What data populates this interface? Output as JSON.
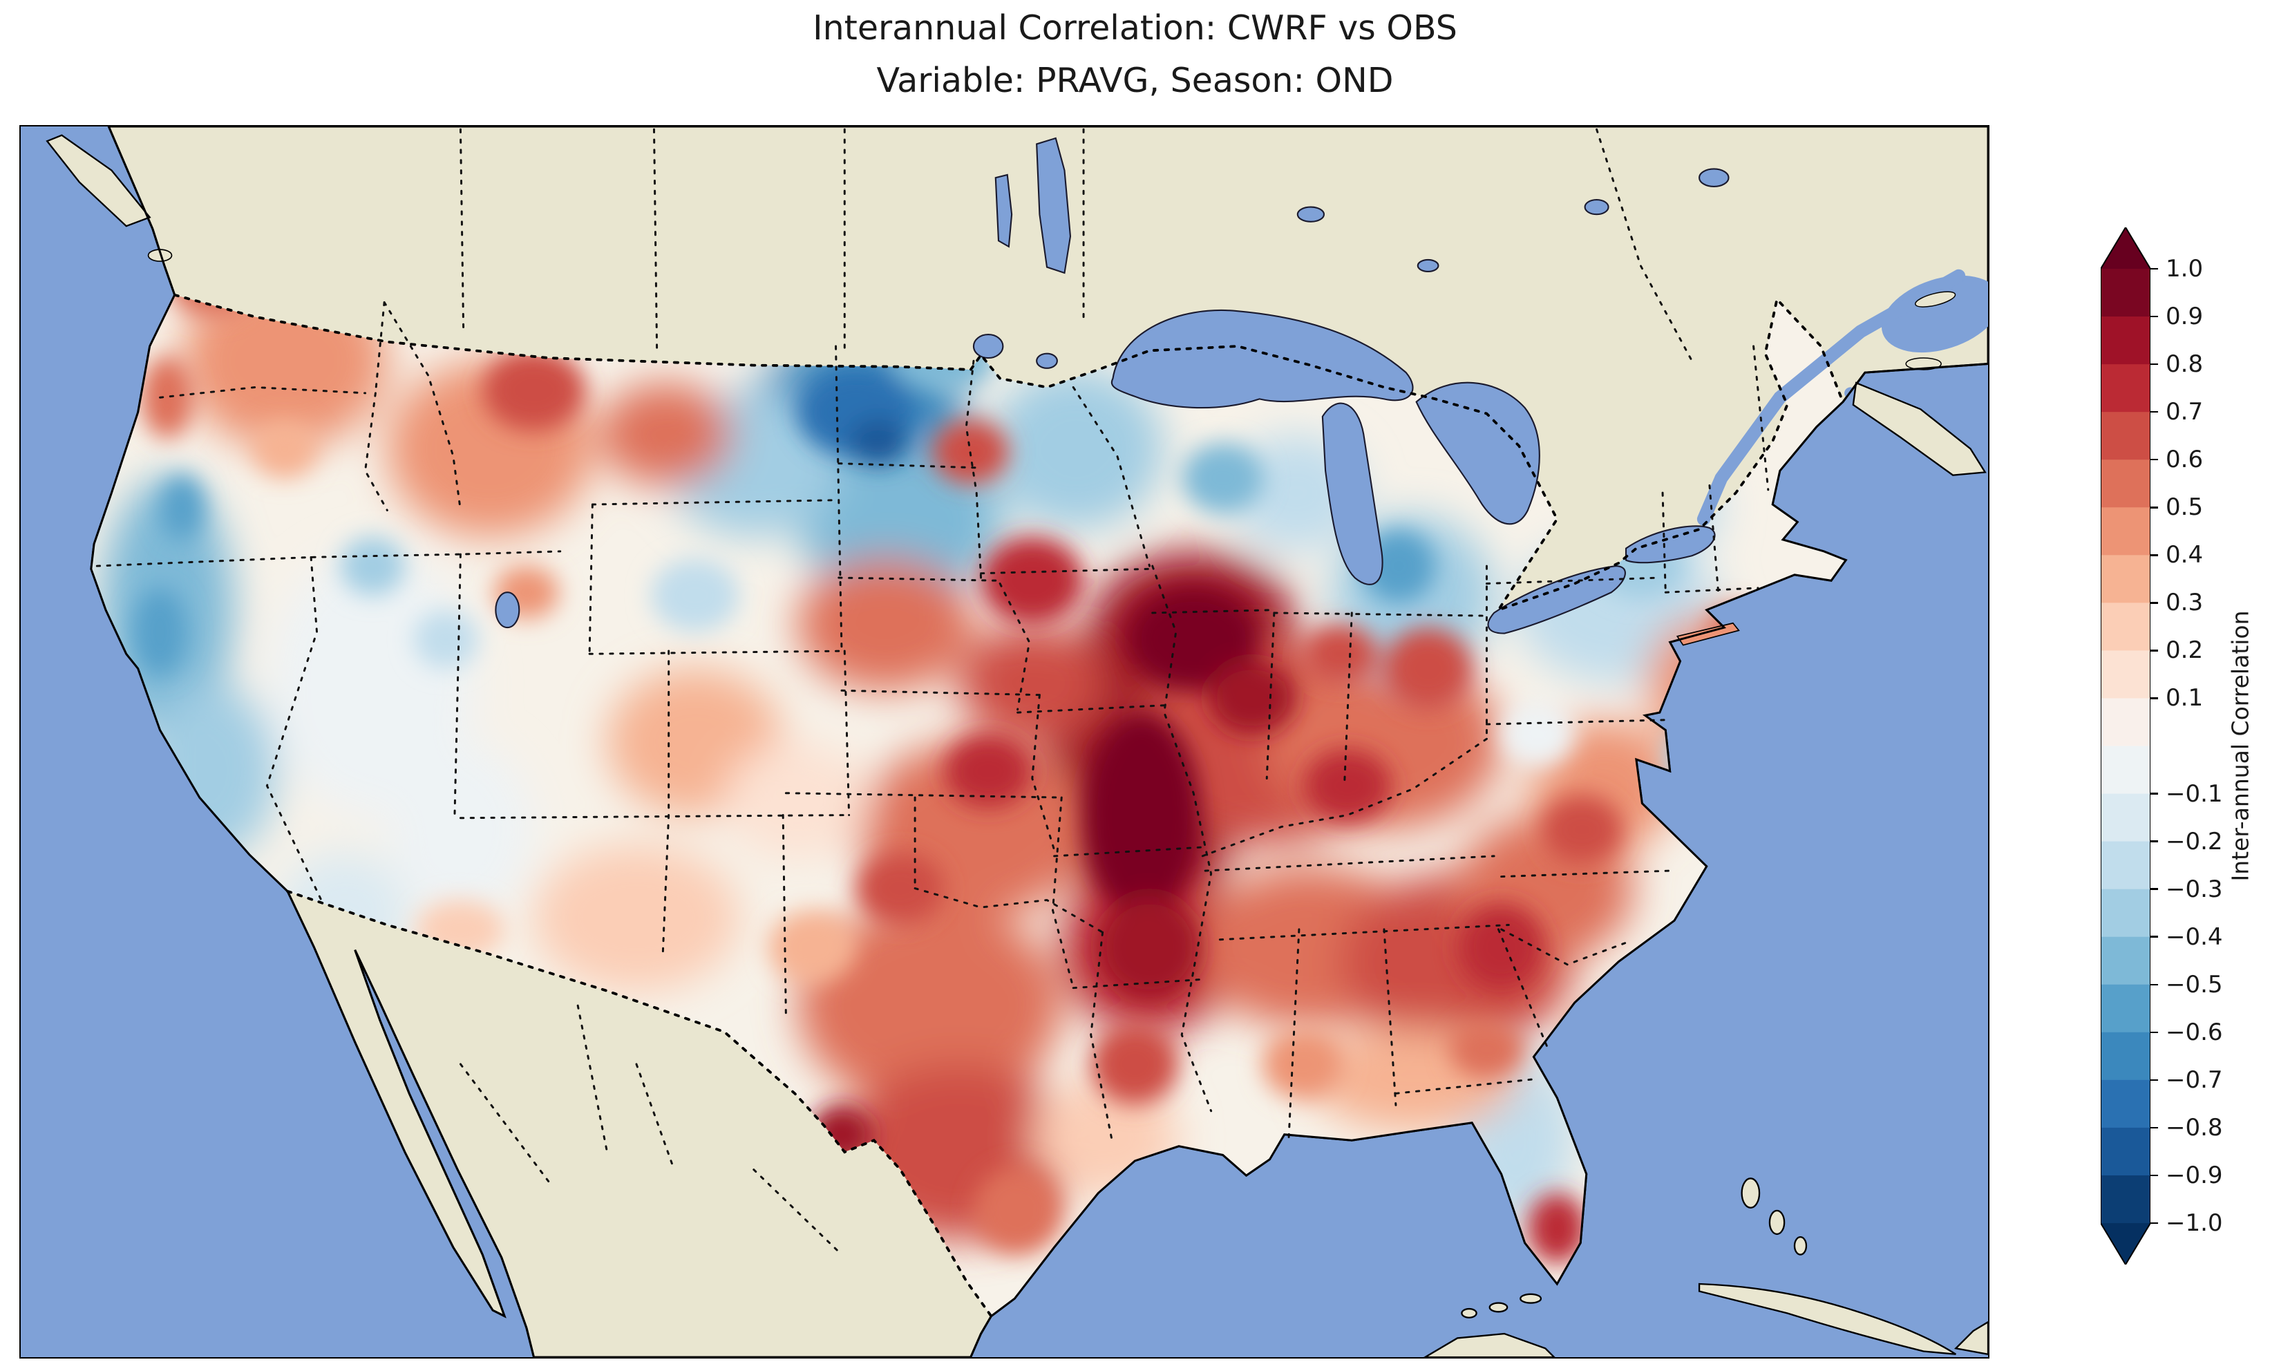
{
  "figure": {
    "title_line1": "Interannual Correlation: CWRF vs OBS",
    "title_line2": "Variable: PRAVG, Season: OND"
  },
  "colorbar": {
    "label": "Inter-annual Correlation",
    "orientation": "vertical",
    "extend": "both",
    "arrow_top_color": "#67001f",
    "arrow_bottom_color": "#053061",
    "band_colors": [
      "#7a0622",
      "#9f1228",
      "#bb2a34",
      "#cd4e45",
      "#de715a",
      "#ed9475",
      "#f6b393",
      "#fbceb6",
      "#fce2d3",
      "#f9f0eb",
      "#eef3f5",
      "#dbeaf2",
      "#c1ddec",
      "#a2cde3",
      "#7eb9d7",
      "#57a0ca",
      "#3b88bd",
      "#2a71b2",
      "#1a5999",
      "#0c3e74"
    ],
    "ticks": [
      {
        "label": "1.0",
        "value": 1.0
      },
      {
        "label": "0.9",
        "value": 0.9
      },
      {
        "label": "0.8",
        "value": 0.8
      },
      {
        "label": "0.7",
        "value": 0.7
      },
      {
        "label": "0.6",
        "value": 0.6
      },
      {
        "label": "0.5",
        "value": 0.5
      },
      {
        "label": "0.4",
        "value": 0.4
      },
      {
        "label": "0.3",
        "value": 0.3
      },
      {
        "label": "0.2",
        "value": 0.2
      },
      {
        "label": "0.1",
        "value": 0.1
      },
      {
        "label": "−0.1",
        "value": -0.1
      },
      {
        "label": "−0.2",
        "value": -0.2
      },
      {
        "label": "−0.3",
        "value": -0.3
      },
      {
        "label": "−0.4",
        "value": -0.4
      },
      {
        "label": "−0.5",
        "value": -0.5
      },
      {
        "label": "−0.6",
        "value": -0.6
      },
      {
        "label": "−0.7",
        "value": -0.7
      },
      {
        "label": "−0.8",
        "value": -0.8
      },
      {
        "label": "−0.9",
        "value": -0.9
      },
      {
        "label": "−1.0",
        "value": -1.0
      }
    ]
  },
  "map": {
    "ocean_color": "#7fa1d7",
    "land_color": "#e9e6d0",
    "us_base_color": "#f7f2e9",
    "border_style": "dotted",
    "frame_color": "#000000"
  },
  "chart_data": {
    "type": "heatmap",
    "title": "Interannual Correlation: CWRF vs OBS",
    "subtitle": "Variable: PRAVG, Season: OND",
    "model": "CWRF",
    "reference": "OBS",
    "variable": "PRAVG",
    "season": "OND",
    "region": "Contiguous United States with surrounding Canada, Mexico, Atlantic and Pacific",
    "colorbar_label": "Inter-annual Correlation",
    "colormap": "RdBu_r (blue = negative correlation, red = positive correlation)",
    "value_range": [
      -1.0,
      1.0
    ],
    "contour_interval": 0.1,
    "legend_position": "right",
    "grid": false,
    "regional_correlations": [
      {
        "region": "Central Midwest (Iowa-Missouri-Illinois corridor)",
        "correlation": 0.85
      },
      {
        "region": "Ozarks / Arkansas",
        "correlation": 0.75
      },
      {
        "region": "Ohio Valley (Indiana-Ohio-Kentucky)",
        "correlation": 0.6
      },
      {
        "region": "Kansas / Oklahoma / northern Texas",
        "correlation": 0.55
      },
      {
        "region": "Central and southern Texas",
        "correlation": 0.5
      },
      {
        "region": "Big Bend, Texas",
        "correlation": 0.7
      },
      {
        "region": "Tennessee / Mississippi / Alabama",
        "correlation": 0.5
      },
      {
        "region": "Georgia / South Carolina",
        "correlation": 0.6
      },
      {
        "region": "Coastal Carolinas / Virginia",
        "correlation": 0.4
      },
      {
        "region": "South Florida tip",
        "correlation": 0.7
      },
      {
        "region": "Florida peninsula",
        "correlation": -0.3
      },
      {
        "region": "Montana-Wyoming-Dakotas junction (dark blue patch)",
        "correlation": -0.7
      },
      {
        "region": "Minnesota / western Great Lakes",
        "correlation": -0.3
      },
      {
        "region": "Michigan / Lake Michigan shore",
        "correlation": -0.5
      },
      {
        "region": "New York / Pennsylvania / New England",
        "correlation": -0.25
      },
      {
        "region": "Mid-Atlantic coast (New Jersey)",
        "correlation": 0.4
      },
      {
        "region": "California coast",
        "correlation": -0.55
      },
      {
        "region": "Great Basin (Nevada / Utah)",
        "correlation": -0.1
      },
      {
        "region": "Pacific Northwest coast (Washington / Oregon)",
        "correlation": 0.45
      },
      {
        "region": "Idaho / western Montana",
        "correlation": 0.5
      },
      {
        "region": "Colorado / New Mexico",
        "correlation": 0.2
      },
      {
        "region": "Gulf Coast (Louisiana / coastal Texas)",
        "correlation": 0.2
      }
    ]
  }
}
